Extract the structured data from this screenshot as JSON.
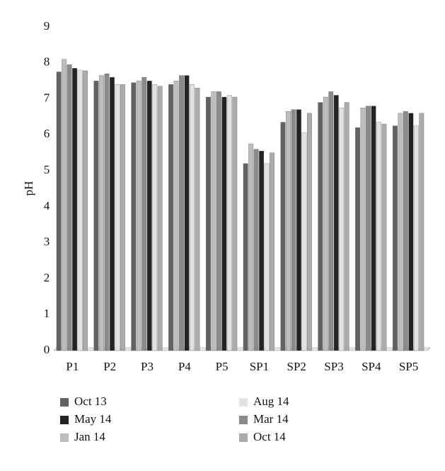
{
  "chart_data": {
    "type": "bar",
    "y_label": "pH",
    "categories": [
      "P1",
      "P2",
      "P3",
      "P4",
      "P5",
      "SP1",
      "SP2",
      "SP3",
      "SP4",
      "SP5"
    ],
    "series": [
      {
        "name": "Oct 13",
        "color": "#626262",
        "values": [
          7.75,
          7.5,
          7.45,
          7.4,
          7.05,
          5.2,
          6.35,
          6.9,
          6.2,
          6.25
        ]
      },
      {
        "name": "Jan 14",
        "color": "#bdbdbd",
        "values": [
          8.1,
          7.65,
          7.5,
          7.5,
          7.2,
          5.75,
          6.65,
          7.05,
          6.75,
          6.6
        ]
      },
      {
        "name": "Mar 14",
        "color": "#8a8a8a",
        "values": [
          7.95,
          7.7,
          7.6,
          7.65,
          7.2,
          5.6,
          6.7,
          7.2,
          6.8,
          6.65
        ]
      },
      {
        "name": "May 14",
        "color": "#232323",
        "values": [
          7.85,
          7.6,
          7.5,
          7.65,
          7.05,
          5.55,
          6.7,
          7.1,
          6.8,
          6.6
        ]
      },
      {
        "name": "Aug 14",
        "color": "#e2e2e2",
        "values": [
          7.8,
          7.4,
          7.4,
          7.4,
          7.1,
          5.2,
          6.05,
          6.75,
          6.35,
          6.25
        ]
      },
      {
        "name": "Oct 14",
        "color": "#ababab",
        "values": [
          7.78,
          7.4,
          7.35,
          7.3,
          7.05,
          5.5,
          6.6,
          6.9,
          6.3,
          6.6
        ]
      }
    ],
    "ylim": [
      0,
      9
    ],
    "yticks": [
      0,
      1,
      2,
      3,
      4,
      5,
      6,
      7,
      8,
      9
    ]
  }
}
